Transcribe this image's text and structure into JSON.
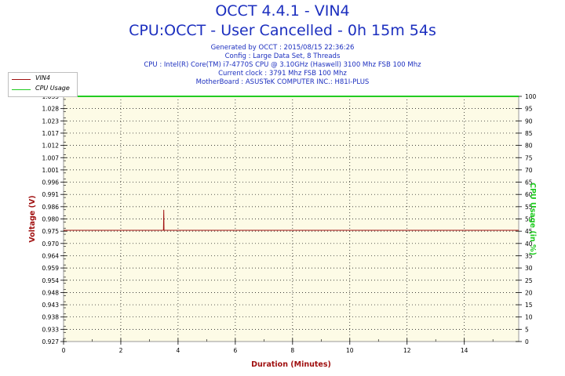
{
  "header": {
    "title": "OCCT 4.4.1 - VIN4",
    "subtitle": "CPU:OCCT - User Cancelled - 0h 15m 54s",
    "info": [
      "Generated by OCCT : 2015/08/15 22:36:26",
      "Config : Large Data Set, 8 Threads",
      "CPU : Intel(R) Core(TM) i7-4770S CPU @ 3.10GHz (Haswell) 3100 Mhz FSB 100 Mhz",
      "Current clock : 3791 Mhz FSB 100 Mhz",
      "MotherBoard : ASUSTeK COMPUTER INC.: H81I-PLUS"
    ]
  },
  "colors": {
    "title": "#1c2fbf",
    "vin4": "#a01010",
    "cpu_usage": "#22cc22",
    "plot_bg": "#fdfbe6",
    "axis_label_left": "#a01010",
    "axis_label_right": "#22cc22"
  },
  "legend": [
    {
      "name": "VIN4",
      "color": "#a01010"
    },
    {
      "name": "CPU Usage",
      "color": "#22cc22"
    }
  ],
  "chart_data": {
    "type": "line",
    "xlabel": "Duration (Minutes)",
    "ylabel": "Voltage (V)",
    "y2label": "CPU Usage (in %)",
    "xlim": [
      0,
      15.9
    ],
    "ylim": [
      0.927,
      1.035
    ],
    "y2lim": [
      0,
      100
    ],
    "grid": true,
    "legend_position": "top-left",
    "x_ticks": [
      "0",
      "2",
      "4",
      "6",
      "8",
      "10",
      "12",
      "14"
    ],
    "y_ticks": [
      "1.035",
      "1.028",
      "1.023",
      "1.017",
      "1.012",
      "1.007",
      "1.001",
      "0.996",
      "0.991",
      "0.986",
      "0.980",
      "0.975",
      "0.970",
      "0.964",
      "0.959",
      "0.954",
      "0.948",
      "0.943",
      "0.938",
      "0.933",
      "0.927"
    ],
    "y2_ticks": [
      "100",
      "95",
      "90",
      "85",
      "80",
      "75",
      "70",
      "65",
      "60",
      "55",
      "50",
      "45",
      "40",
      "35",
      "30",
      "25",
      "20",
      "15",
      "10",
      "5",
      "0"
    ],
    "series": [
      {
        "name": "VIN4",
        "axis": "left",
        "x": [
          0,
          3.49,
          3.5,
          3.51,
          3.52,
          15.9
        ],
        "y": [
          0.976,
          0.976,
          0.985,
          0.976,
          0.976,
          0.976
        ]
      },
      {
        "name": "CPU Usage",
        "axis": "right",
        "x": [
          0,
          15.9
        ],
        "y": [
          100,
          100
        ]
      }
    ]
  }
}
